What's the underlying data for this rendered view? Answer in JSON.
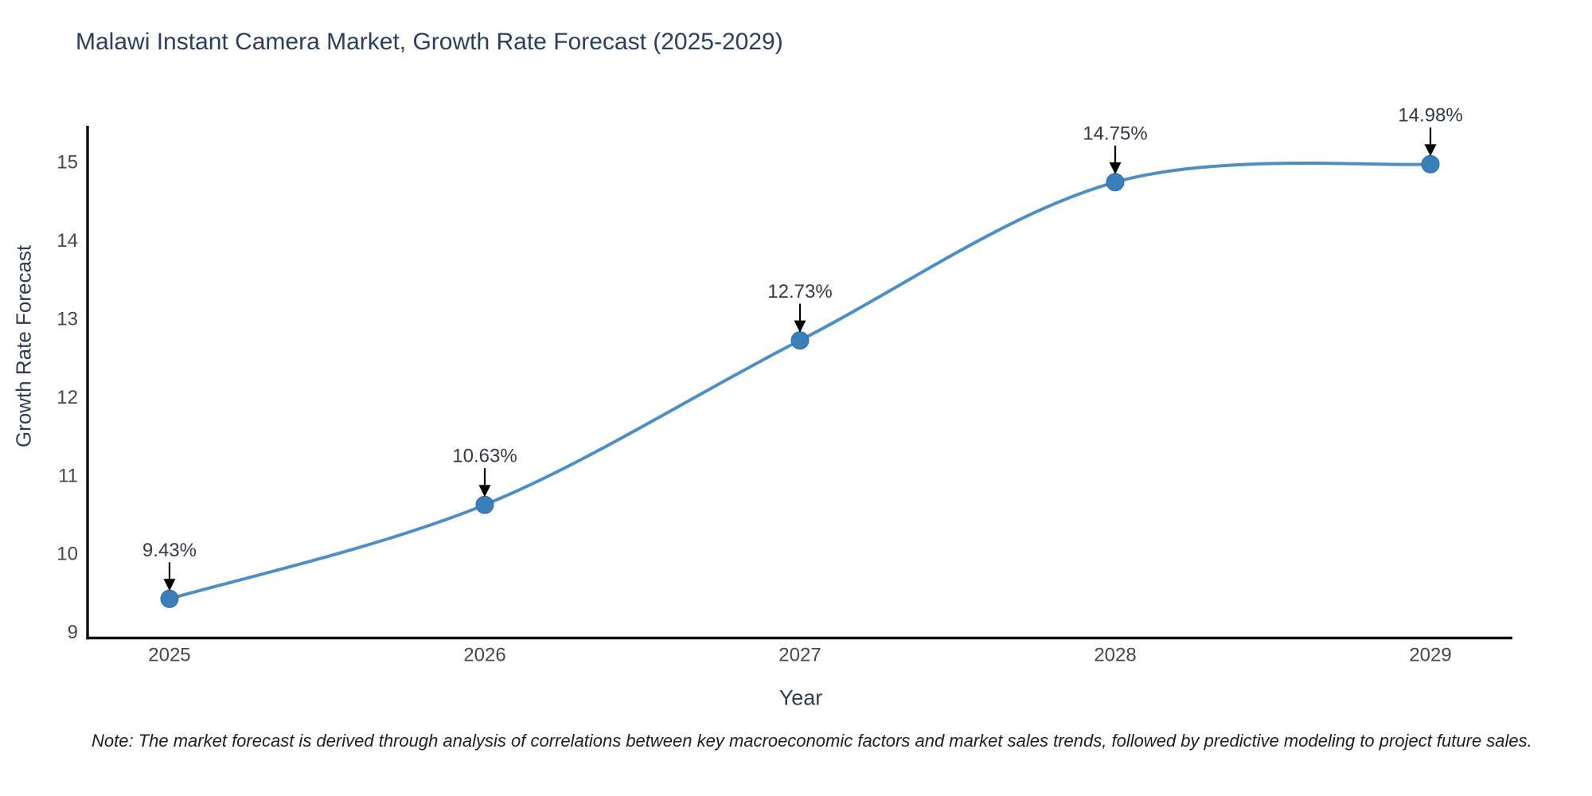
{
  "title": "Malawi Instant Camera Market, Growth Rate Forecast (2025-2029)",
  "note": "Note: The market forecast is derived through analysis of correlations between key macroeconomic factors and market sales trends, followed by predictive modeling to project future sales.",
  "chart_data": {
    "type": "line",
    "title": "Malawi Instant Camera Market, Growth Rate Forecast (2025-2029)",
    "xlabel": "Year",
    "ylabel": "Growth Rate Forecast",
    "x": [
      2025,
      2026,
      2027,
      2028,
      2029
    ],
    "y": [
      9.43,
      10.63,
      12.73,
      14.75,
      14.98
    ],
    "point_labels": [
      "9.43%",
      "10.63%",
      "12.73%",
      "14.75%",
      "14.98%"
    ],
    "xticks": [
      "2025",
      "2026",
      "2027",
      "2028",
      "2029"
    ],
    "yticks": [
      9,
      10,
      11,
      12,
      13,
      14,
      15
    ],
    "xlim": [
      2024.74,
      2029.26
    ],
    "ylim": [
      8.93,
      15.47
    ],
    "grid": false,
    "legend": null,
    "line_shape": "spline",
    "colors": {
      "line": "#4d8ec5",
      "marker": "#3b7fba",
      "marker_edge": "#2f6da8",
      "axis": "#111111",
      "tick_label": "#3f4a57",
      "annotation_text": "#333b46",
      "annotation_arrow": "#000000",
      "title_text": "#2a3f5f",
      "background": "#ffffff"
    }
  }
}
